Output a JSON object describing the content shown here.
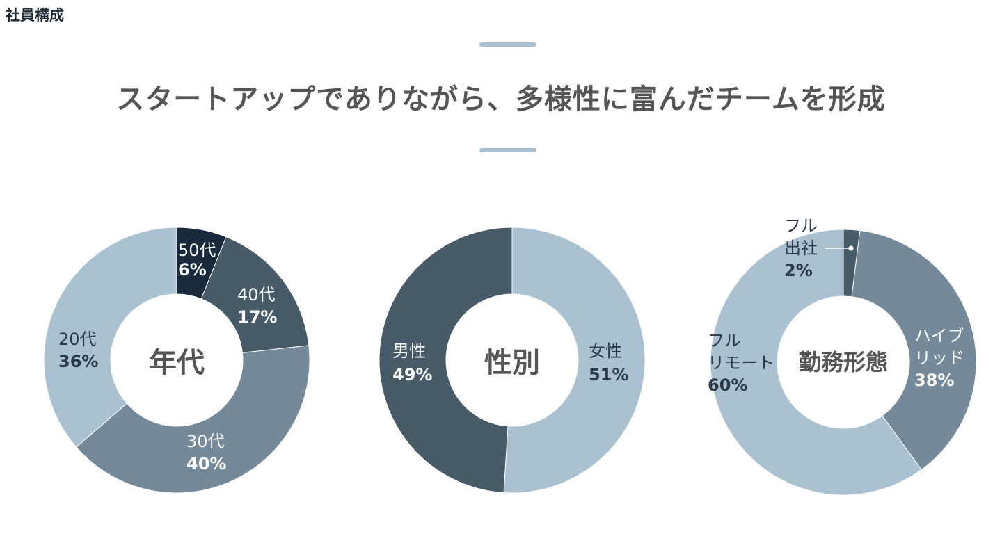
{
  "page": {
    "section_label": "社員構成",
    "headline": "スタートアップでありながら、多様性に富んだチームを形成"
  },
  "colors": {
    "darkest": "#17293a",
    "dark": "#465a68",
    "mid": "#748a9a",
    "light": "#aac1d2",
    "accent_line": "#a8bfd1"
  },
  "chart_data": [
    {
      "type": "pie",
      "title": "年代",
      "categories": [
        "50代",
        "40代",
        "30代",
        "20代"
      ],
      "values": [
        6,
        17,
        40,
        36
      ],
      "labels": [
        "6%",
        "17%",
        "40%",
        "36%"
      ],
      "colors": [
        "#17293a",
        "#465a68",
        "#748a9a",
        "#aac1d2"
      ]
    },
    {
      "type": "pie",
      "title": "性別",
      "categories": [
        "女性",
        "男性"
      ],
      "values": [
        51,
        49
      ],
      "labels": [
        "51%",
        "49%"
      ],
      "colors": [
        "#aac1d2",
        "#465a68"
      ]
    },
    {
      "type": "pie",
      "title": "勤務形態",
      "categories": [
        "フル出社",
        "ハイブリッド",
        "フルリモート"
      ],
      "category_lines": [
        [
          "フル",
          "出社"
        ],
        [
          "ハイブ",
          "リッド"
        ],
        [
          "フル",
          "リモート"
        ]
      ],
      "values": [
        2,
        38,
        60
      ],
      "labels": [
        "2%",
        "38%",
        "60%"
      ],
      "colors": [
        "#465a68",
        "#748a9a",
        "#aac1d2"
      ]
    }
  ]
}
